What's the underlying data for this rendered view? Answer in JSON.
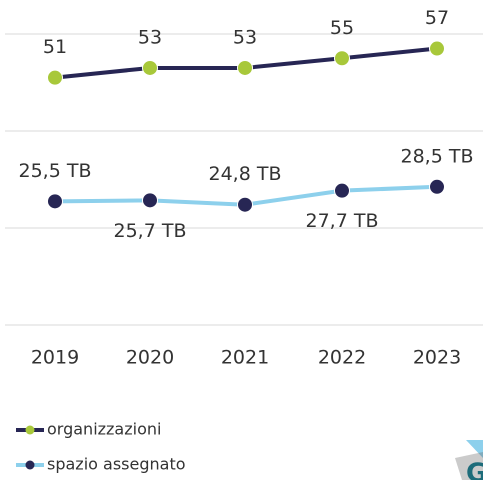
{
  "chart_data": {
    "type": "line",
    "categories": [
      "2019",
      "2020",
      "2021",
      "2022",
      "2023"
    ],
    "series": [
      {
        "name": "organizzazioni",
        "color": "#272654",
        "marker_color": "#a8c83a",
        "values": [
          51,
          53,
          53,
          55,
          57
        ]
      },
      {
        "name": "spazio assegnato",
        "color": "#8dd0ec",
        "marker_color": "#272654",
        "values": [
          25.5,
          25.7,
          24.8,
          27.7,
          28.5
        ],
        "value_labels": [
          "25,5 TB",
          "25,7 TB",
          "24,8 TB",
          "27,7 TB",
          "28,5 TB"
        ]
      }
    ],
    "ylim": [
      0,
      60
    ],
    "yticks": [
      0,
      20,
      40,
      60
    ],
    "grid": true
  }
}
